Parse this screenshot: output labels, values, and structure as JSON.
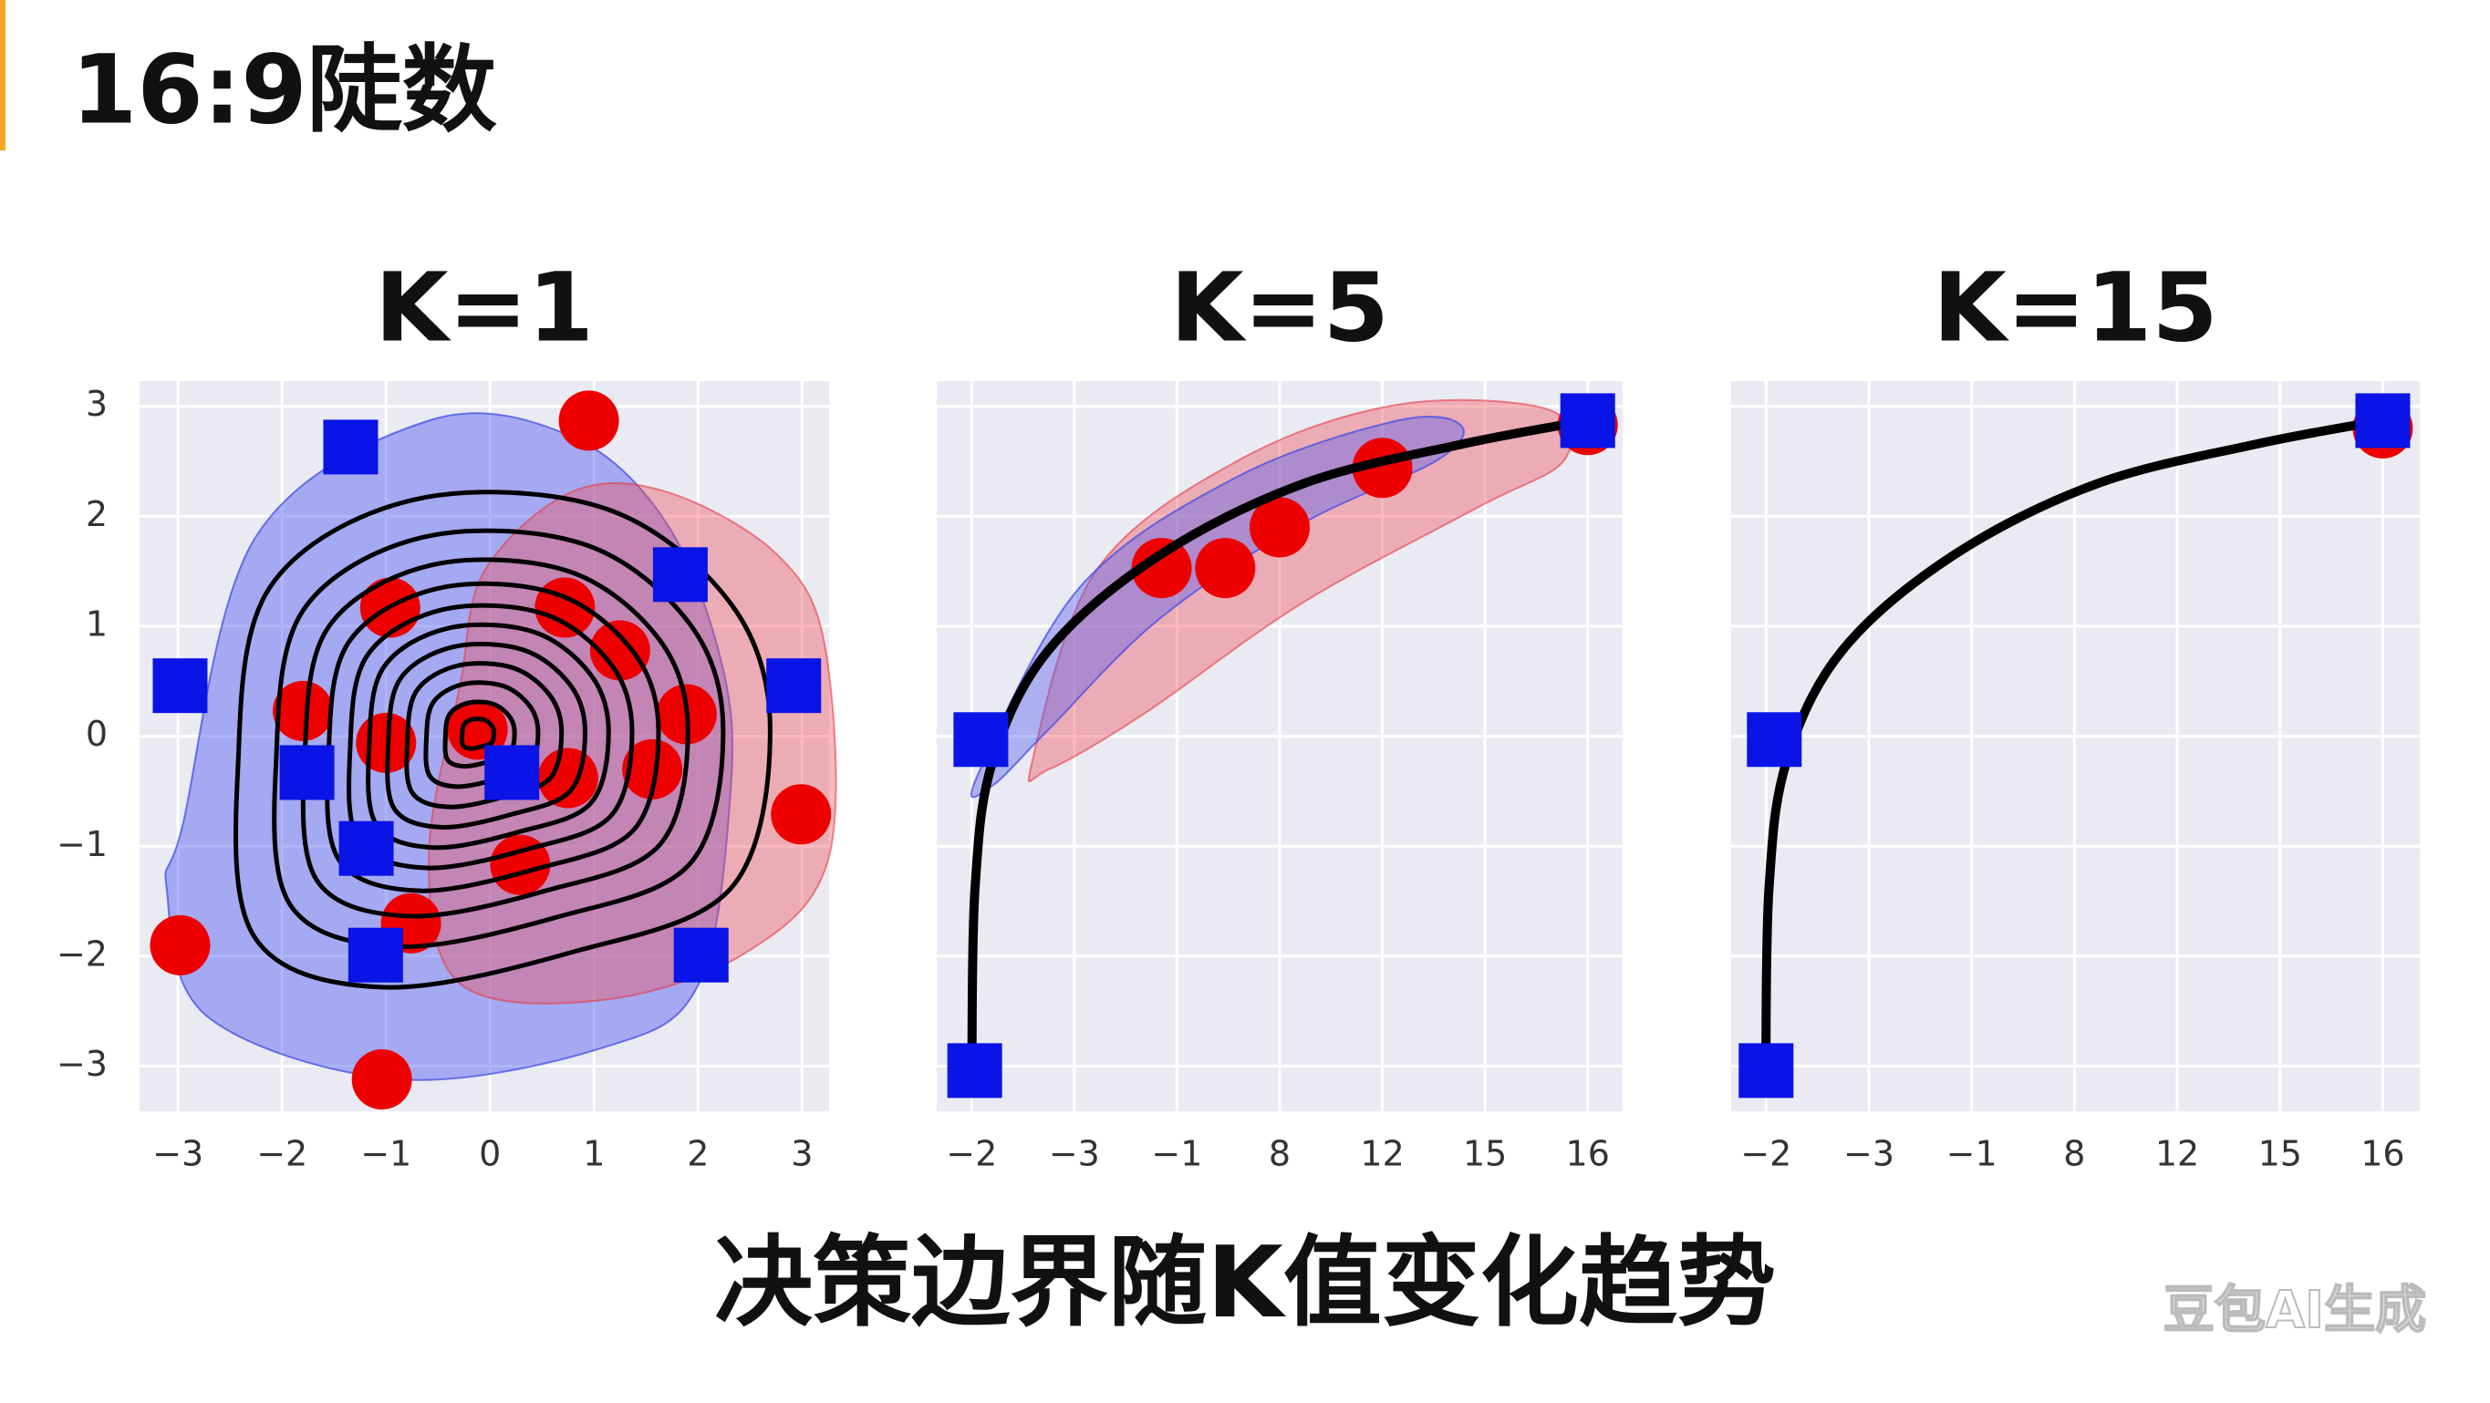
{
  "header": {
    "title": "16:9陡数"
  },
  "chart_data": [
    {
      "type": "scatter",
      "title": "K=1",
      "xlim": [
        -3.37,
        3.26
      ],
      "ylim": [
        -3.41,
        3.23
      ],
      "xticks": [
        {
          "value": -3,
          "label": "−3"
        },
        {
          "value": -2,
          "label": "−2"
        },
        {
          "value": -1,
          "label": "−1"
        },
        0,
        1,
        2,
        3
      ],
      "yticks": [
        {
          "value": -3,
          "label": "−3"
        },
        {
          "value": -2,
          "label": "−2"
        },
        {
          "value": -1,
          "label": "−1"
        },
        0,
        1,
        2,
        3
      ],
      "ytick_labels": true,
      "grid": true,
      "decoration": "contours",
      "series": [
        {
          "color": "#ee0000",
          "marker": "circle",
          "x": [
            0.95,
            -0.96,
            0.72,
            1.25,
            -1.8,
            1.89,
            -1.0,
            -0.12,
            0.75,
            1.56,
            2.99,
            0.29,
            -0.76,
            -2.98,
            -1.04
          ],
          "values": [
            2.87,
            1.17,
            1.17,
            0.78,
            0.23,
            0.2,
            -0.06,
            0.06,
            -0.38,
            -0.3,
            -0.71,
            -1.17,
            -1.7,
            -1.9,
            -3.12
          ]
        },
        {
          "color": "#0a14e6",
          "marker": "square",
          "x": [
            -1.34,
            1.83,
            -2.98,
            2.92,
            -1.76,
            0.21,
            -1.19,
            -1.1,
            2.03
          ],
          "values": [
            2.63,
            1.47,
            0.46,
            0.46,
            -0.33,
            -0.33,
            -1.02,
            -1.99,
            -1.99
          ]
        }
      ]
    },
    {
      "type": "scatter",
      "title": "K=5",
      "xlim": [
        -0.34,
        6.34
      ],
      "ylim": [
        -3.41,
        3.23
      ],
      "xticks": [
        {
          "value": 0,
          "label": "−2"
        },
        {
          "value": 1,
          "label": "−3"
        },
        {
          "value": 2,
          "label": "−1"
        },
        {
          "value": 3,
          "label": "8"
        },
        {
          "value": 4,
          "label": "12"
        },
        {
          "value": 5,
          "label": "15"
        },
        {
          "value": 6,
          "label": "16"
        }
      ],
      "yticks": [
        -3,
        -2,
        -1,
        0,
        1,
        2,
        3
      ],
      "ytick_labels": false,
      "grid": true,
      "decoration": "curve-blobs",
      "series": [
        {
          "color": "#ee0000",
          "marker": "circle",
          "x": [
            1.85,
            2.47,
            3.0,
            4.0,
            6.0
          ],
          "values": [
            1.53,
            1.53,
            1.9,
            2.44,
            2.83
          ]
        },
        {
          "color": "#0a14e6",
          "marker": "square",
          "x": [
            0.09,
            0.03,
            6.0
          ],
          "values": [
            -0.03,
            -3.04,
            2.87
          ]
        }
      ]
    },
    {
      "type": "scatter",
      "title": "K=15",
      "xlim": [
        -0.34,
        6.36
      ],
      "ylim": [
        -3.41,
        3.23
      ],
      "xticks": [
        {
          "value": 0,
          "label": "−2"
        },
        {
          "value": 1,
          "label": "−3"
        },
        {
          "value": 2,
          "label": "−1"
        },
        {
          "value": 3,
          "label": "8"
        },
        {
          "value": 4,
          "label": "12"
        },
        {
          "value": 5,
          "label": "15"
        },
        {
          "value": 6,
          "label": "16"
        }
      ],
      "yticks": [
        -3,
        -2,
        -1,
        0,
        1,
        2,
        3
      ],
      "ytick_labels": false,
      "grid": true,
      "decoration": "curve",
      "series": [
        {
          "color": "#ee0000",
          "marker": "circle",
          "x": [
            6.0
          ],
          "values": [
            2.8
          ]
        },
        {
          "color": "#0a14e6",
          "marker": "square",
          "x": [
            0.08,
            0.0,
            6.0
          ],
          "values": [
            -0.03,
            -3.04,
            2.87
          ]
        }
      ]
    }
  ],
  "caption": "决策边界随K值变化趋势",
  "watermark": "豆包AI生成"
}
